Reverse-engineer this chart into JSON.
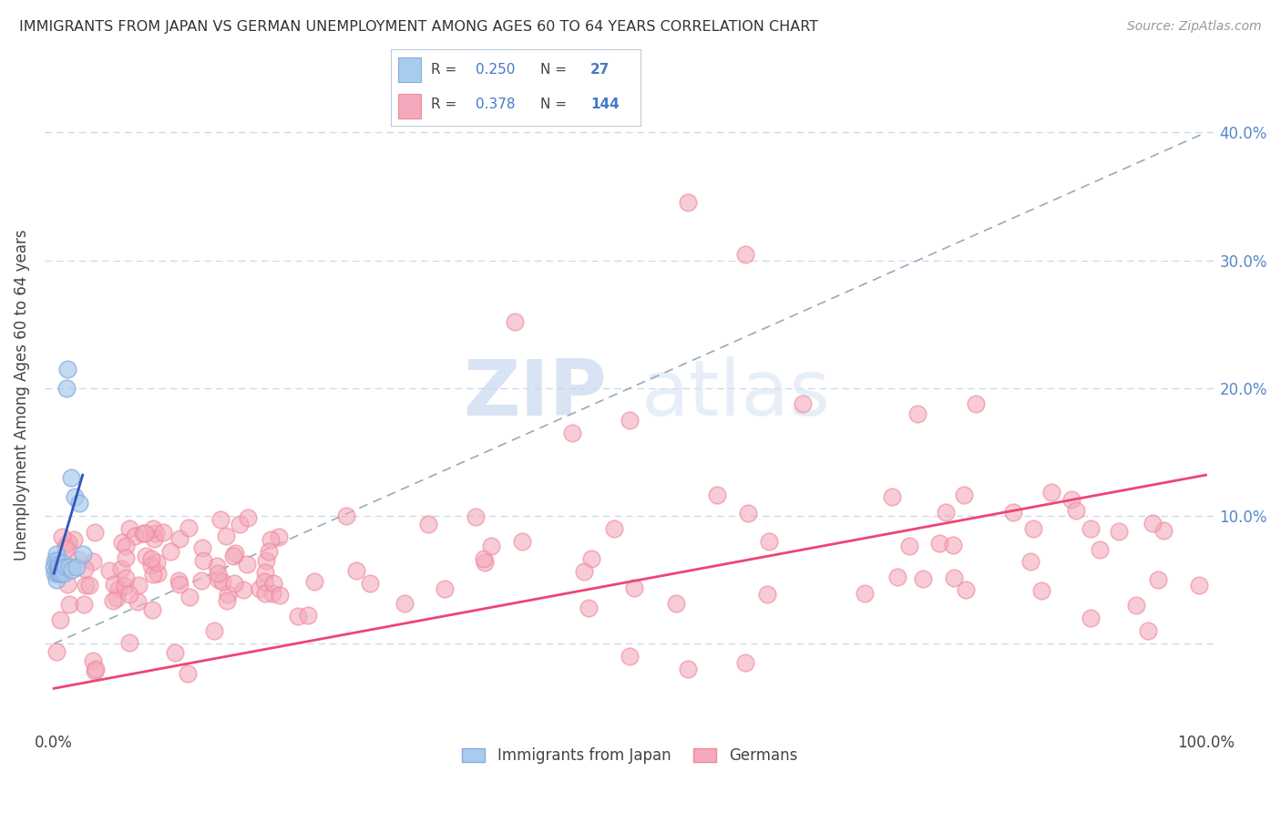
{
  "title": "IMMIGRANTS FROM JAPAN VS GERMAN UNEMPLOYMENT AMONG AGES 60 TO 64 YEARS CORRELATION CHART",
  "source": "Source: ZipAtlas.com",
  "ylabel": "Unemployment Among Ages 60 to 64 years",
  "legend_label1": "Immigrants from Japan",
  "legend_label2": "Germans",
  "R1": "0.250",
  "N1": "27",
  "R2": "0.378",
  "N2": "144",
  "xlim": [
    -0.008,
    1.008
  ],
  "ylim": [
    -0.068,
    0.458
  ],
  "xtick_left": "0.0%",
  "xtick_right": "100.0%",
  "yticks": [
    0.0,
    0.1,
    0.2,
    0.3,
    0.4
  ],
  "yticklabels_right": [
    "10.0%",
    "20.0%",
    "30.0%",
    "40.0%"
  ],
  "yticks_right": [
    0.1,
    0.2,
    0.3,
    0.4
  ],
  "color_blue": "#A8CCEE",
  "color_pink": "#F4AABC",
  "color_blue_edge": "#88AADD",
  "color_pink_edge": "#EE8899",
  "color_blue_line": "#3355BB",
  "color_pink_line": "#EE4477",
  "color_diag": "#99AABB",
  "watermark_zip": "ZIP",
  "watermark_atlas": "atlas",
  "legend_box_color": "#F0F4FF",
  "legend_border_color": "#AABBDD"
}
